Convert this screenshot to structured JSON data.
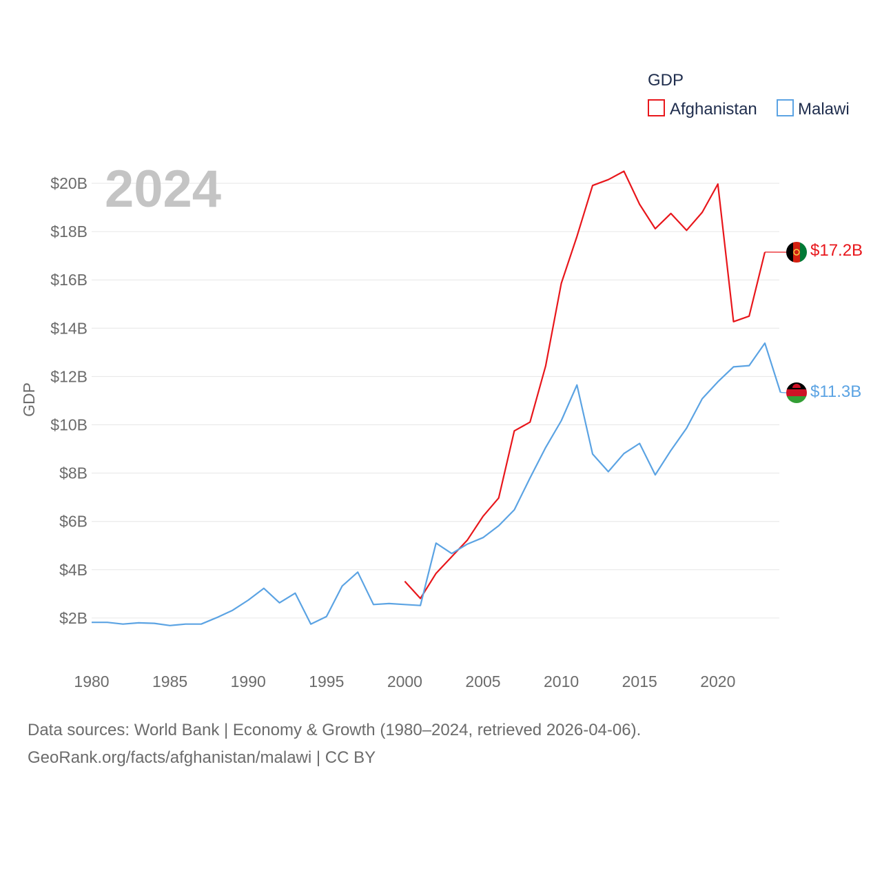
{
  "chart_data": {
    "type": "line",
    "year_label": "2024",
    "ylabel": "GDP",
    "xlabel": "",
    "ylim": [
      0,
      21
    ],
    "xlim": [
      1980,
      2024.6
    ],
    "y_ticks": [
      {
        "value": 2,
        "label": "$2B"
      },
      {
        "value": 4,
        "label": "$4B"
      },
      {
        "value": 6,
        "label": "$6B"
      },
      {
        "value": 8,
        "label": "$8B"
      },
      {
        "value": 10,
        "label": "$10B"
      },
      {
        "value": 12,
        "label": "$12B"
      },
      {
        "value": 14,
        "label": "$14B"
      },
      {
        "value": 16,
        "label": "$16B"
      },
      {
        "value": 18,
        "label": "$18B"
      },
      {
        "value": 20,
        "label": "$20B"
      }
    ],
    "x_ticks": [
      {
        "value": 1980,
        "label": "1980"
      },
      {
        "value": 1985,
        "label": "1985"
      },
      {
        "value": 1990,
        "label": "1990"
      },
      {
        "value": 1995,
        "label": "1995"
      },
      {
        "value": 2000,
        "label": "2000"
      },
      {
        "value": 2005,
        "label": "2005"
      },
      {
        "value": 2010,
        "label": "2010"
      },
      {
        "value": 2015,
        "label": "2015"
      },
      {
        "value": 2020,
        "label": "2020"
      }
    ],
    "legend": {
      "title": "GDP",
      "position": "top-right"
    },
    "series": [
      {
        "name": "Afghanistan",
        "color": "#e8161b",
        "end_label": "$17.2B",
        "end_value": 17.2,
        "flag": "afghanistan-flag-icon",
        "x": [
          2000,
          2001,
          2002,
          2003,
          2004,
          2005,
          2006,
          2007,
          2008,
          2009,
          2010,
          2011,
          2012,
          2013,
          2014,
          2015,
          2016,
          2017,
          2018,
          2019,
          2020,
          2021,
          2022,
          2023
        ],
        "values": [
          3.52,
          2.81,
          3.85,
          4.54,
          5.23,
          6.21,
          6.97,
          9.75,
          10.11,
          12.44,
          15.86,
          17.8,
          19.91,
          20.15,
          20.5,
          19.13,
          18.12,
          18.75,
          18.05,
          18.8,
          19.97,
          14.27,
          14.5,
          17.15
        ]
      },
      {
        "name": "Malawi",
        "color": "#5ba3e3",
        "end_label": "$11.3B",
        "end_value": 11.3,
        "flag": "malawi-flag-icon",
        "x": [
          1980,
          1981,
          1982,
          1983,
          1984,
          1985,
          1986,
          1987,
          1988,
          1989,
          1990,
          1991,
          1992,
          1993,
          1994,
          1995,
          1996,
          1997,
          1998,
          1999,
          2000,
          2001,
          2002,
          2003,
          2004,
          2005,
          2006,
          2007,
          2008,
          2009,
          2010,
          2011,
          2012,
          2013,
          2014,
          2015,
          2016,
          2017,
          2018,
          2019,
          2020,
          2021,
          2022,
          2023,
          2024
        ],
        "values": [
          1.82,
          1.82,
          1.75,
          1.8,
          1.78,
          1.69,
          1.75,
          1.75,
          2.02,
          2.32,
          2.74,
          3.23,
          2.63,
          3.03,
          1.75,
          2.06,
          3.32,
          3.9,
          2.56,
          2.6,
          2.56,
          2.52,
          5.1,
          4.67,
          5.06,
          5.33,
          5.82,
          6.48,
          7.8,
          9.06,
          10.17,
          11.65,
          8.79,
          8.06,
          8.81,
          9.23,
          7.93,
          8.94,
          9.86,
          11.08,
          11.78,
          12.4,
          12.45,
          13.38,
          11.34
        ]
      }
    ]
  },
  "source": {
    "line1": "Data sources: World Bank | Economy & Growth (1980–2024, retrieved 2026-04-06).",
    "line2": "GeoRank.org/facts/afghanistan/malawi | CC BY"
  }
}
